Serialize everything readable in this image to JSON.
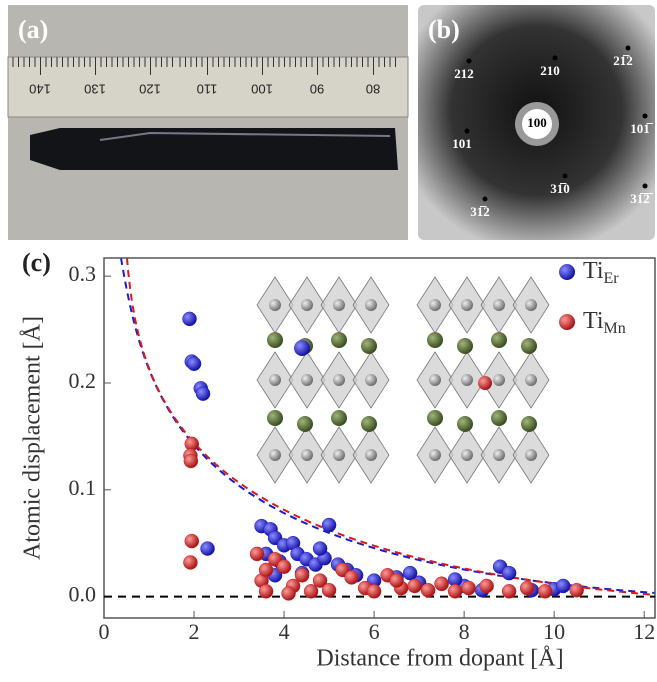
{
  "panel_a": {
    "label": "(a)",
    "ruler_labels": [
      "140",
      "130",
      "120",
      "110",
      "100",
      "90",
      "80"
    ]
  },
  "panel_b": {
    "label": "(b)",
    "spots": [
      "212",
      "210",
      "21̅2",
      "101",
      "100",
      "101̅",
      "31̅0",
      "31̅2",
      "31̅2̅"
    ]
  },
  "chart_data": {
    "type": "scatter",
    "label": "(c)",
    "x_label": "Distance from dopant [Å]",
    "y_label": "Atomic displacement [Å]",
    "xlim": [
      0,
      12.24
    ],
    "xticks": [
      0,
      2,
      4,
      6,
      8,
      10,
      12
    ],
    "ylim": [
      -0.02,
      0.317
    ],
    "yticks": [
      {
        "value": 0,
        "label": "0.0"
      },
      0.1,
      0.2,
      0.3
    ],
    "legend": "upper right",
    "series": [
      {
        "name": "Ti",
        "subscript": "Er",
        "color": "#1a1ad6",
        "x": [
          1.9,
          1.95,
          2.0,
          2.15,
          2.2,
          2.3,
          3.5,
          3.7,
          3.8,
          3.6,
          4.0,
          4.2,
          4.3,
          4.5,
          4.7,
          4.9,
          5.0,
          5.2,
          5.4,
          3.8,
          4.4,
          5.6,
          6.0,
          6.5,
          7.0,
          7.5,
          8.0,
          8.4,
          8.8,
          9.0,
          9.5,
          10.0,
          10.2,
          6.8,
          7.8,
          4.8,
          3.9
        ],
        "values": [
          0.26,
          0.22,
          0.218,
          0.195,
          0.19,
          0.045,
          0.066,
          0.063,
          0.055,
          0.04,
          0.048,
          0.05,
          0.04,
          0.035,
          0.03,
          0.036,
          0.067,
          0.03,
          0.025,
          0.02,
          0.022,
          0.02,
          0.015,
          0.018,
          0.013,
          0.012,
          0.01,
          0.006,
          0.028,
          0.022,
          0.006,
          0.007,
          0.01,
          0.022,
          0.016,
          0.045,
          0.033
        ]
      },
      {
        "name": "Ti",
        "subscript": "Mn",
        "color": "#d81a1a",
        "x": [
          1.95,
          1.92,
          1.93,
          1.95,
          1.92,
          3.4,
          3.5,
          3.6,
          3.8,
          4.0,
          4.2,
          4.4,
          4.6,
          4.8,
          5.0,
          5.3,
          5.5,
          5.8,
          6.0,
          6.3,
          6.6,
          6.9,
          7.2,
          7.5,
          7.8,
          8.1,
          8.5,
          9.0,
          9.4,
          9.8,
          10.5,
          3.6,
          4.1,
          6.5
        ],
        "values": [
          0.143,
          0.132,
          0.127,
          0.052,
          0.032,
          0.04,
          0.015,
          0.025,
          0.035,
          0.028,
          0.01,
          0.02,
          0.005,
          0.015,
          0.006,
          0.025,
          0.018,
          0.008,
          0.005,
          0.02,
          0.008,
          0.01,
          0.006,
          0.012,
          0.005,
          0.008,
          0.01,
          0.005,
          0.008,
          0.005,
          0.006,
          0.005,
          0.003,
          0.015
        ]
      }
    ]
  }
}
